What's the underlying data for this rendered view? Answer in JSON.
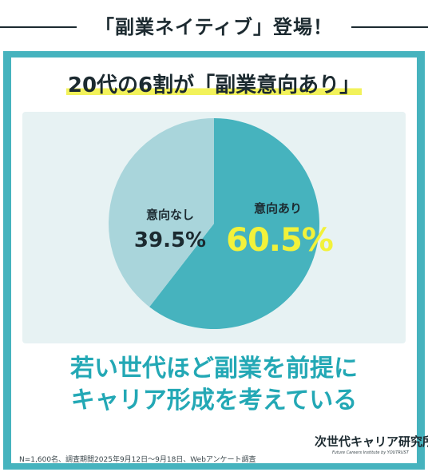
{
  "top_title": "「副業ネイティブ」登場！",
  "headline": "20代の6割が「副業意向あり」",
  "chart_data": {
    "type": "pie",
    "slices": [
      {
        "label": "意向あり",
        "value": 60.5,
        "display": "60.5%",
        "color": "#46b3be"
      },
      {
        "label": "意向なし",
        "value": 39.5,
        "display": "39.5%",
        "color": "#a9d5db"
      }
    ],
    "start": "12 o'clock",
    "direction": "clockwise",
    "background": "#e7f2f3",
    "highlight_value_color": "#f2f23a"
  },
  "conclusion": {
    "line1": "若い世代ほど副業を前提に",
    "line2": "キャリア形成を考えている"
  },
  "footnote": "N=1,600名、調査期間2025年9月12日～9月18日、Webアンケート調査",
  "logo": {
    "main": "次世代キャリア研究所",
    "sub": "Future Careers Institute by YOUTRUST"
  },
  "colors": {
    "frame": "#46b3be",
    "text": "#1c2a30",
    "accent_text": "#23a8b5",
    "highlight": "#f2f25a"
  }
}
